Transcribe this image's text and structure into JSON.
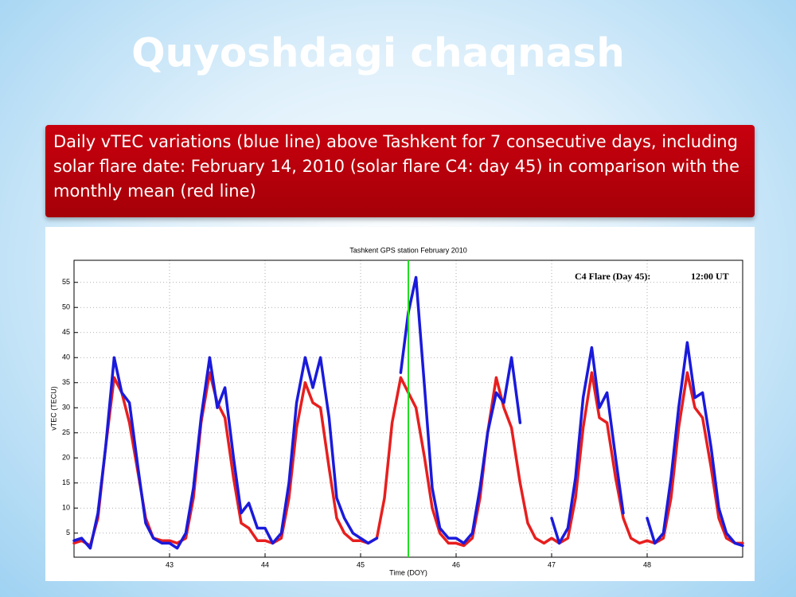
{
  "slide_title": "Quyoshdagi chaqnash",
  "caption": "Daily vTEC variations (blue line) above Tashkent for 7 consecutive days, including solar flare date: February 14, 2010 (solar flare C4: day 45) in comparison with the monthly mean (red line)",
  "chart_data": {
    "type": "line",
    "title": "Tashkent GPS station February 2010",
    "x_label": "Time (DOY)",
    "y_label": "vTEC (TECU)",
    "annotation": "C4 Flare (Day 45):",
    "annotation_time": "12:00 UT",
    "flare_x": 45.5,
    "flare_color": "#22dd22",
    "x": [
      42,
      42.08,
      42.17,
      42.25,
      42.33,
      42.42,
      42.5,
      42.58,
      42.67,
      42.75,
      42.83,
      42.92,
      43,
      43.08,
      43.17,
      43.25,
      43.33,
      43.42,
      43.5,
      43.58,
      43.67,
      43.75,
      43.83,
      43.92,
      44,
      44.08,
      44.17,
      44.25,
      44.33,
      44.42,
      44.5,
      44.58,
      44.67,
      44.75,
      44.83,
      44.92,
      45,
      45.08,
      45.17,
      45.25,
      45.33,
      45.42,
      45.5,
      45.58,
      45.67,
      45.75,
      45.83,
      45.92,
      46,
      46.08,
      46.17,
      46.25,
      46.33,
      46.42,
      46.5,
      46.58,
      46.67,
      46.75,
      46.83,
      46.92,
      47,
      47.08,
      47.17,
      47.25,
      47.33,
      47.42,
      47.5,
      47.58,
      47.67,
      47.75,
      47.83,
      47.92,
      48,
      48.08,
      48.17,
      48.25,
      48.33,
      48.42,
      48.5,
      48.58,
      48.67,
      48.75,
      48.83,
      48.92,
      49
    ],
    "series": [
      {
        "name": "vTEC",
        "color": "#1a1adc",
        "values": [
          3.5,
          4,
          2,
          9,
          22,
          40,
          33,
          31,
          18,
          7,
          4,
          3,
          3,
          2,
          5,
          14,
          28,
          40,
          30,
          34,
          20,
          9,
          11,
          6,
          6,
          3,
          5,
          15,
          31,
          40,
          34,
          40,
          28,
          12,
          8,
          5,
          4,
          3,
          4,
          null,
          null,
          37,
          49,
          56,
          34,
          14,
          6,
          4,
          4,
          3,
          5,
          14,
          25,
          33,
          31,
          40,
          27,
          null,
          null,
          null,
          8,
          3,
          6,
          16,
          32,
          42,
          30,
          33,
          20,
          9,
          null,
          null,
          8,
          3,
          5,
          16,
          30,
          43,
          32,
          33,
          22,
          10,
          5,
          3,
          2.5
        ]
      },
      {
        "name": "Monthly mean",
        "color": "#e81e1e",
        "values": [
          3,
          3.5,
          2.5,
          8,
          22,
          36,
          33,
          27,
          17,
          8,
          4,
          3.5,
          3.5,
          3,
          4,
          12,
          27,
          37,
          31,
          28,
          16,
          7,
          6,
          3.5,
          3.5,
          3,
          4,
          12,
          26,
          35,
          31,
          30,
          18,
          8,
          5,
          3.5,
          3.5,
          3,
          4,
          12,
          27,
          36,
          33,
          30,
          20,
          10,
          5,
          3,
          3,
          2.5,
          4,
          12,
          25,
          36,
          30,
          26,
          15,
          7,
          4,
          3,
          4,
          3,
          4,
          12,
          26,
          37,
          28,
          27,
          16,
          8,
          4,
          3,
          3.5,
          3,
          4,
          12,
          26,
          37,
          30,
          28,
          18,
          8,
          4,
          3,
          3
        ]
      }
    ],
    "xlim": [
      42,
      49
    ],
    "ylim": [
      0.2,
      59.4
    ],
    "xticks": [
      43,
      44,
      45,
      46,
      47,
      48
    ],
    "yticks": [
      5,
      10,
      15,
      20,
      25,
      30,
      35,
      40,
      45,
      50,
      55
    ],
    "grid": true
  }
}
